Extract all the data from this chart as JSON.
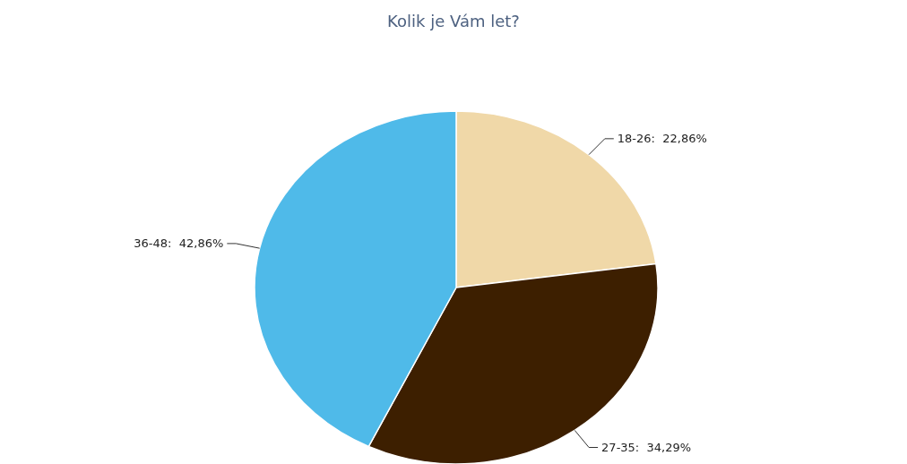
{
  "chart_data": {
    "type": "pie",
    "title": "Kolik je Vám let?",
    "categories": [
      "18-26",
      "27-35",
      "36-48"
    ],
    "values": [
      22.86,
      34.29,
      42.86
    ],
    "colors": [
      "#f0d8a8",
      "#3d1f00",
      "#4fbae9"
    ],
    "value_labels": [
      "22,86%",
      "34,29%",
      "42,86%"
    ]
  }
}
